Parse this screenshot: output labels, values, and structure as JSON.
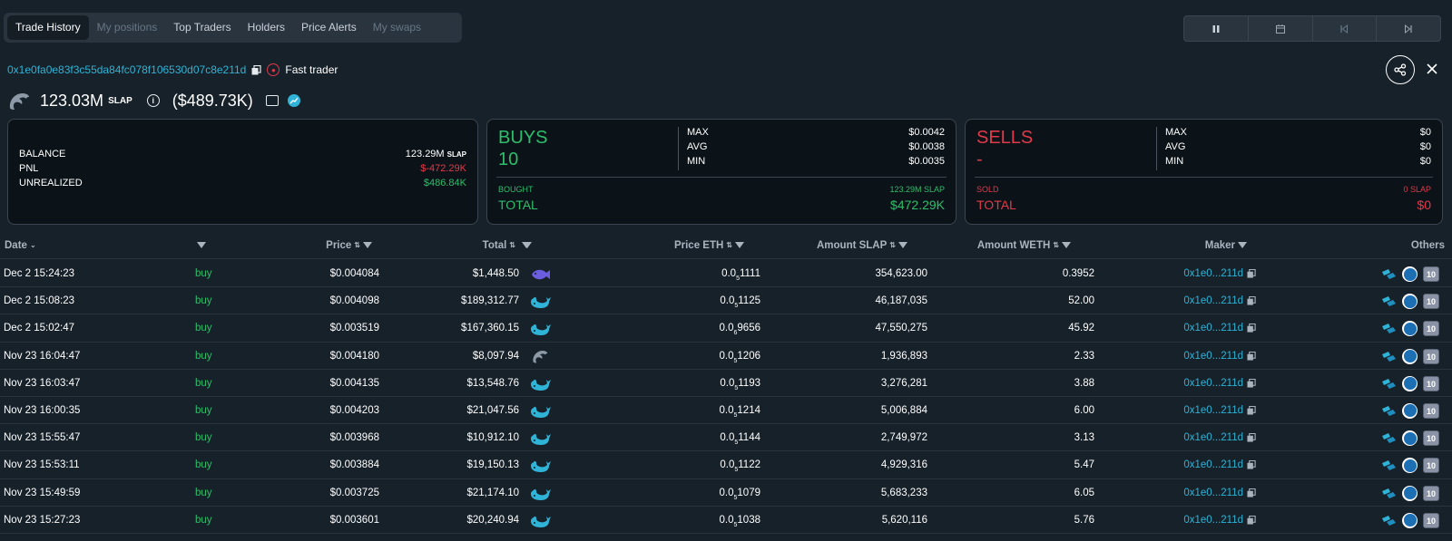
{
  "tabs": [
    {
      "label": "Trade History",
      "state": "active"
    },
    {
      "label": "My positions",
      "state": "disabled"
    },
    {
      "label": "Top Traders",
      "state": "normal"
    },
    {
      "label": "Holders",
      "state": "normal"
    },
    {
      "label": "Price Alerts",
      "state": "normal"
    },
    {
      "label": "My swaps",
      "state": "disabled"
    }
  ],
  "controls": [
    "pause-icon",
    "calendar-icon",
    "skip-back-icon",
    "skip-forward-icon"
  ],
  "wallet": {
    "address": "0x1e0fa0e83f3c55da84fc078f106530d07c8e211d",
    "badge_label": "Fast trader"
  },
  "holding": {
    "amount": "123.03M",
    "unit": "SLAP",
    "usd": "($489.73K)"
  },
  "summary": {
    "balance_label": "BALANCE",
    "balance_value": "123.29M",
    "balance_unit": "SLAP",
    "pnl_label": "PNL",
    "pnl_value": "$-472.29K",
    "unrealized_label": "UNREALIZED",
    "unrealized_value": "$486.84K"
  },
  "buys": {
    "label": "BUYS",
    "count": "10",
    "max_label": "MAX",
    "max": "$0.0042",
    "avg_label": "AVG",
    "avg": "$0.0038",
    "min_label": "MIN",
    "min": "$0.0035",
    "sub_label": "BOUGHT",
    "sub_value": "123.29M SLAP",
    "total_label": "TOTAL",
    "total": "$472.29K"
  },
  "sells": {
    "label": "SELLS",
    "count": "-",
    "max_label": "MAX",
    "max": "$0",
    "avg_label": "AVG",
    "avg": "$0",
    "min_label": "MIN",
    "min": "$0",
    "sub_label": "SOLD",
    "sub_value": "0 SLAP",
    "total_label": "TOTAL",
    "total": "$0"
  },
  "columns": {
    "date": "Date",
    "price": "Price",
    "total": "Total",
    "price_eth": "Price ETH",
    "amount_slap": "Amount SLAP",
    "amount_weth": "Amount WETH",
    "maker": "Maker",
    "others": "Others"
  },
  "colors": {
    "buy": "#2ebd6b",
    "sell": "#e0394a",
    "link": "#2fb3d6"
  },
  "trades": [
    {
      "date": "Dec 2 15:24:23",
      "type": "buy",
      "price": "$0.004084",
      "total": "$1,448.50",
      "size_icon": "fish-icon",
      "peth_a": "0.0",
      "peth_sub": "5",
      "peth_b": "1111",
      "amount": "354,623.00",
      "weth": "0.3952",
      "maker": "0x1e0...211d",
      "others_count": "10"
    },
    {
      "date": "Dec 2 15:08:23",
      "type": "buy",
      "price": "$0.004098",
      "total": "$189,312.77",
      "size_icon": "whale-icon",
      "peth_a": "0.0",
      "peth_sub": "5",
      "peth_b": "1125",
      "amount": "46,187,035",
      "weth": "52.00",
      "maker": "0x1e0...211d",
      "others_count": "10"
    },
    {
      "date": "Dec 2 15:02:47",
      "type": "buy",
      "price": "$0.003519",
      "total": "$167,360.15",
      "size_icon": "whale-icon",
      "peth_a": "0.0",
      "peth_sub": "6",
      "peth_b": "9656",
      "amount": "47,550,275",
      "weth": "45.92",
      "maker": "0x1e0...211d",
      "others_count": "10"
    },
    {
      "date": "Nov 23 16:04:47",
      "type": "buy",
      "price": "$0.004180",
      "total": "$8,097.94",
      "size_icon": "dolphin-icon",
      "peth_a": "0.0",
      "peth_sub": "5",
      "peth_b": "1206",
      "amount": "1,936,893",
      "weth": "2.33",
      "maker": "0x1e0...211d",
      "others_count": "10"
    },
    {
      "date": "Nov 23 16:03:47",
      "type": "buy",
      "price": "$0.004135",
      "total": "$13,548.76",
      "size_icon": "whale-icon",
      "peth_a": "0.0",
      "peth_sub": "5",
      "peth_b": "1193",
      "amount": "3,276,281",
      "weth": "3.88",
      "maker": "0x1e0...211d",
      "others_count": "10"
    },
    {
      "date": "Nov 23 16:00:35",
      "type": "buy",
      "price": "$0.004203",
      "total": "$21,047.56",
      "size_icon": "whale-icon",
      "peth_a": "0.0",
      "peth_sub": "5",
      "peth_b": "1214",
      "amount": "5,006,884",
      "weth": "6.00",
      "maker": "0x1e0...211d",
      "others_count": "10"
    },
    {
      "date": "Nov 23 15:55:47",
      "type": "buy",
      "price": "$0.003968",
      "total": "$10,912.10",
      "size_icon": "whale-icon",
      "peth_a": "0.0",
      "peth_sub": "5",
      "peth_b": "1144",
      "amount": "2,749,972",
      "weth": "3.13",
      "maker": "0x1e0...211d",
      "others_count": "10"
    },
    {
      "date": "Nov 23 15:53:11",
      "type": "buy",
      "price": "$0.003884",
      "total": "$19,150.13",
      "size_icon": "whale-icon",
      "peth_a": "0.0",
      "peth_sub": "5",
      "peth_b": "1122",
      "amount": "4,929,316",
      "weth": "5.47",
      "maker": "0x1e0...211d",
      "others_count": "10"
    },
    {
      "date": "Nov 23 15:49:59",
      "type": "buy",
      "price": "$0.003725",
      "total": "$21,174.10",
      "size_icon": "whale-icon",
      "peth_a": "0.0",
      "peth_sub": "5",
      "peth_b": "1079",
      "amount": "5,683,233",
      "weth": "6.05",
      "maker": "0x1e0...211d",
      "others_count": "10"
    },
    {
      "date": "Nov 23 15:27:23",
      "type": "buy",
      "price": "$0.003601",
      "total": "$20,240.94",
      "size_icon": "whale-icon",
      "peth_a": "0.0",
      "peth_sub": "5",
      "peth_b": "1038",
      "amount": "5,620,116",
      "weth": "5.76",
      "maker": "0x1e0...211d",
      "others_count": "10"
    }
  ]
}
